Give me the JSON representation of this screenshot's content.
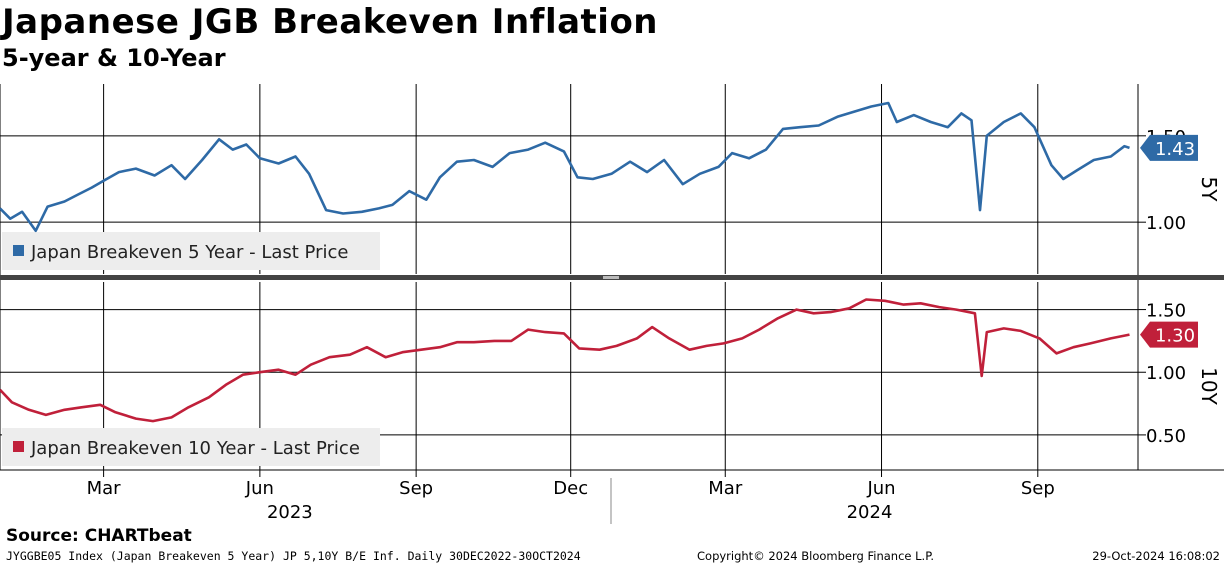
{
  "title": "Japanese JGB Breakeven Inflation",
  "subtitle": "5-year & 10-Year",
  "source": "Source: CHARTbeat",
  "footer": {
    "left": "JYGGBE05 Index (Japan Breakeven 5 Year) JP 5,10Y B/E Inf.  Daily 30DEC2022-30OCT2024",
    "middle": "Copyright© 2024 Bloomberg Finance L.P.",
    "right": "29-Oct-2024 16:08:02"
  },
  "chart_data": {
    "type": "line",
    "x_axis": {
      "months": [
        "Mar",
        "Jun",
        "Sep",
        "Dec",
        "Mar",
        "Jun",
        "Sep"
      ],
      "years": [
        "2023",
        "2024"
      ],
      "range": [
        "2022-12-30",
        "2024-10-30"
      ]
    },
    "colors": {
      "series_5y": "#2e6aa6",
      "series_10y": "#c0203a",
      "grid": "#000000"
    },
    "panels": [
      {
        "axis_label": "5Y",
        "yticks": [
          "1.00",
          "1.50"
        ],
        "ylim": [
          0.7,
          1.8
        ],
        "series": {
          "name": "Japan Breakeven 5 Year - Last Price",
          "last_value": "1.43",
          "points": [
            [
              "2022-12-30",
              1.08
            ],
            [
              "2023-01-05",
              1.02
            ],
            [
              "2023-01-12",
              1.06
            ],
            [
              "2023-01-20",
              0.95
            ],
            [
              "2023-01-27",
              1.09
            ],
            [
              "2023-02-06",
              1.12
            ],
            [
              "2023-02-14",
              1.16
            ],
            [
              "2023-02-22",
              1.2
            ],
            [
              "2023-03-01",
              1.24
            ],
            [
              "2023-03-10",
              1.29
            ],
            [
              "2023-03-20",
              1.31
            ],
            [
              "2023-03-31",
              1.27
            ],
            [
              "2023-04-10",
              1.33
            ],
            [
              "2023-04-18",
              1.25
            ],
            [
              "2023-04-28",
              1.36
            ],
            [
              "2023-05-08",
              1.48
            ],
            [
              "2023-05-16",
              1.42
            ],
            [
              "2023-05-24",
              1.45
            ],
            [
              "2023-06-01",
              1.37
            ],
            [
              "2023-06-12",
              1.34
            ],
            [
              "2023-06-22",
              1.38
            ],
            [
              "2023-06-30",
              1.28
            ],
            [
              "2023-07-10",
              1.07
            ],
            [
              "2023-07-20",
              1.05
            ],
            [
              "2023-07-31",
              1.06
            ],
            [
              "2023-08-10",
              1.08
            ],
            [
              "2023-08-18",
              1.1
            ],
            [
              "2023-08-28",
              1.18
            ],
            [
              "2023-09-07",
              1.13
            ],
            [
              "2023-09-15",
              1.26
            ],
            [
              "2023-09-25",
              1.35
            ],
            [
              "2023-10-05",
              1.36
            ],
            [
              "2023-10-16",
              1.32
            ],
            [
              "2023-10-26",
              1.4
            ],
            [
              "2023-11-06",
              1.42
            ],
            [
              "2023-11-16",
              1.46
            ],
            [
              "2023-11-27",
              1.41
            ],
            [
              "2023-12-05",
              1.26
            ],
            [
              "2023-12-14",
              1.25
            ],
            [
              "2023-12-25",
              1.28
            ],
            [
              "2024-01-05",
              1.35
            ],
            [
              "2024-01-15",
              1.29
            ],
            [
              "2024-01-25",
              1.36
            ],
            [
              "2024-02-05",
              1.22
            ],
            [
              "2024-02-15",
              1.28
            ],
            [
              "2024-02-26",
              1.32
            ],
            [
              "2024-03-05",
              1.4
            ],
            [
              "2024-03-15",
              1.37
            ],
            [
              "2024-03-25",
              1.42
            ],
            [
              "2024-04-04",
              1.54
            ],
            [
              "2024-04-14",
              1.55
            ],
            [
              "2024-04-25",
              1.56
            ],
            [
              "2024-05-06",
              1.61
            ],
            [
              "2024-05-16",
              1.64
            ],
            [
              "2024-05-26",
              1.67
            ],
            [
              "2024-06-05",
              1.69
            ],
            [
              "2024-06-10",
              1.58
            ],
            [
              "2024-06-20",
              1.62
            ],
            [
              "2024-06-30",
              1.58
            ],
            [
              "2024-07-10",
              1.55
            ],
            [
              "2024-07-18",
              1.63
            ],
            [
              "2024-07-24",
              1.59
            ],
            [
              "2024-07-29",
              1.07
            ],
            [
              "2024-08-02",
              1.5
            ],
            [
              "2024-08-12",
              1.58
            ],
            [
              "2024-08-22",
              1.63
            ],
            [
              "2024-08-30",
              1.55
            ],
            [
              "2024-09-09",
              1.33
            ],
            [
              "2024-09-16",
              1.25
            ],
            [
              "2024-09-24",
              1.3
            ],
            [
              "2024-10-04",
              1.36
            ],
            [
              "2024-10-14",
              1.38
            ],
            [
              "2024-10-22",
              1.44
            ],
            [
              "2024-10-25",
              1.43
            ]
          ]
        }
      },
      {
        "axis_label": "10Y",
        "yticks": [
          "0.50",
          "1.00",
          "1.50"
        ],
        "ylim": [
          0.22,
          1.72
        ],
        "series": {
          "name": "Japan Breakeven 10 Year - Last Price",
          "last_value": "1.30",
          "points": [
            [
              "2022-12-30",
              0.86
            ],
            [
              "2023-01-06",
              0.76
            ],
            [
              "2023-01-16",
              0.7
            ],
            [
              "2023-01-26",
              0.66
            ],
            [
              "2023-02-06",
              0.7
            ],
            [
              "2023-02-16",
              0.72
            ],
            [
              "2023-02-27",
              0.74
            ],
            [
              "2023-03-08",
              0.68
            ],
            [
              "2023-03-20",
              0.63
            ],
            [
              "2023-03-30",
              0.61
            ],
            [
              "2023-04-10",
              0.64
            ],
            [
              "2023-04-20",
              0.72
            ],
            [
              "2023-05-02",
              0.8
            ],
            [
              "2023-05-12",
              0.9
            ],
            [
              "2023-05-22",
              0.98
            ],
            [
              "2023-06-01",
              1.0
            ],
            [
              "2023-06-12",
              1.02
            ],
            [
              "2023-06-22",
              0.98
            ],
            [
              "2023-07-01",
              1.06
            ],
            [
              "2023-07-12",
              1.12
            ],
            [
              "2023-07-24",
              1.14
            ],
            [
              "2023-08-03",
              1.2
            ],
            [
              "2023-08-14",
              1.12
            ],
            [
              "2023-08-24",
              1.16
            ],
            [
              "2023-09-04",
              1.18
            ],
            [
              "2023-09-15",
              1.2
            ],
            [
              "2023-09-25",
              1.24
            ],
            [
              "2023-10-05",
              1.24
            ],
            [
              "2023-10-17",
              1.25
            ],
            [
              "2023-10-27",
              1.25
            ],
            [
              "2023-11-06",
              1.34
            ],
            [
              "2023-11-16",
              1.32
            ],
            [
              "2023-11-27",
              1.31
            ],
            [
              "2023-12-06",
              1.19
            ],
            [
              "2023-12-18",
              1.18
            ],
            [
              "2023-12-28",
              1.21
            ],
            [
              "2024-01-09",
              1.27
            ],
            [
              "2024-01-18",
              1.36
            ],
            [
              "2024-01-28",
              1.27
            ],
            [
              "2024-02-09",
              1.18
            ],
            [
              "2024-02-19",
              1.21
            ],
            [
              "2024-02-29",
              1.23
            ],
            [
              "2024-03-11",
              1.27
            ],
            [
              "2024-03-21",
              1.34
            ],
            [
              "2024-04-01",
              1.43
            ],
            [
              "2024-04-12",
              1.5
            ],
            [
              "2024-04-22",
              1.47
            ],
            [
              "2024-05-02",
              1.48
            ],
            [
              "2024-05-13",
              1.51
            ],
            [
              "2024-05-23",
              1.58
            ],
            [
              "2024-06-03",
              1.57
            ],
            [
              "2024-06-14",
              1.54
            ],
            [
              "2024-06-24",
              1.55
            ],
            [
              "2024-07-05",
              1.52
            ],
            [
              "2024-07-15",
              1.5
            ],
            [
              "2024-07-26",
              1.47
            ],
            [
              "2024-07-30",
              0.97
            ],
            [
              "2024-08-02",
              1.32
            ],
            [
              "2024-08-12",
              1.35
            ],
            [
              "2024-08-22",
              1.33
            ],
            [
              "2024-09-02",
              1.27
            ],
            [
              "2024-09-12",
              1.15
            ],
            [
              "2024-09-22",
              1.2
            ],
            [
              "2024-10-02",
              1.23
            ],
            [
              "2024-10-14",
              1.27
            ],
            [
              "2024-10-25",
              1.3
            ]
          ]
        }
      }
    ]
  }
}
